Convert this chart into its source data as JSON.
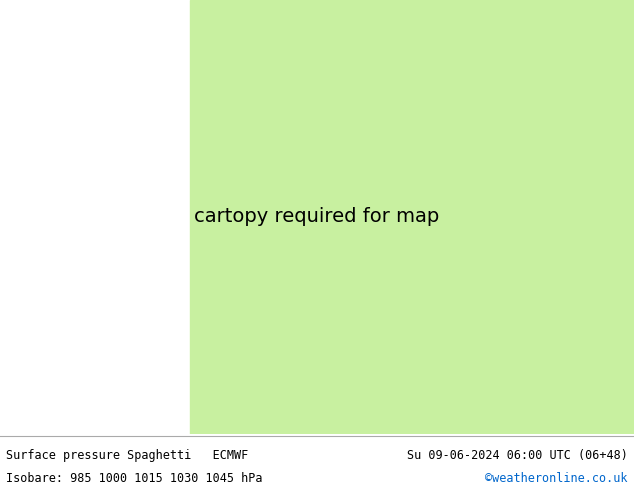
{
  "title_left": "Surface pressure Spaghetti   ECMWF",
  "title_right": "Su 09-06-2024 06:00 UTC (06+48)",
  "subtitle_left": "Isobare: 985 1000 1015 1030 1045 hPa",
  "subtitle_right": "©weatheronline.co.uk",
  "subtitle_right_color": "#0066cc",
  "land_color": "#c8f0a0",
  "ocean_color": "#d8d8d8",
  "coast_color": "#808080",
  "text_color": "#000000",
  "footer_bg_color": "#ffffff",
  "fig_width": 6.34,
  "fig_height": 4.9,
  "dpi": 100,
  "map_extent": [
    -80,
    50,
    25,
    75
  ],
  "isobar_colors": [
    "#ff0000",
    "#ff6600",
    "#ffcc00",
    "#00cc00",
    "#00ccff",
    "#0066ff",
    "#9900cc",
    "#cc00cc",
    "#ff99cc",
    "#666666",
    "#ff6699",
    "#00ff99",
    "#99ccff",
    "#ff9966",
    "#33cccc",
    "#ff3300",
    "#cc9900",
    "#3366ff",
    "#cc3399",
    "#339900",
    "#ff6600",
    "#6600ff",
    "#00ff66",
    "#ff0066",
    "#0099ff",
    "#ffff00",
    "#cc6600",
    "#6699ff",
    "#ff33cc",
    "#66cc33"
  ],
  "n_members": 50,
  "label_color_map": {
    "985": "#ff0000",
    "1000": "#333333",
    "1015": "#333333",
    "1030": "#333333",
    "1045": "#333333"
  }
}
